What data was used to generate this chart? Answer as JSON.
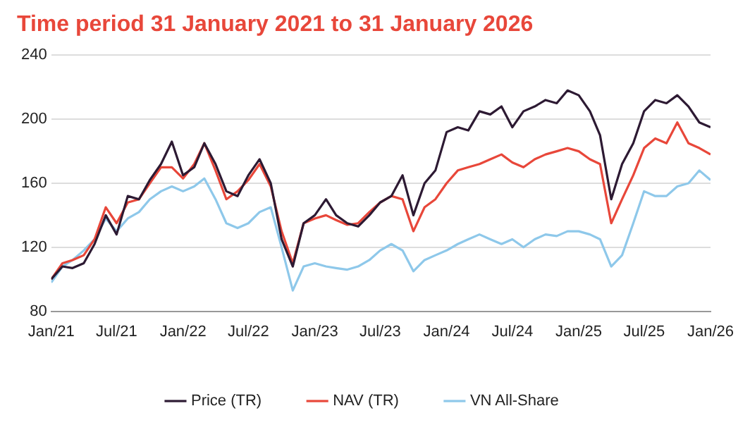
{
  "chart_data": {
    "type": "line",
    "title": "Time period 31 January 2021 to 31 January 2026",
    "x": [
      "2021-01",
      "2021-02",
      "2021-03",
      "2021-04",
      "2021-05",
      "2021-06",
      "2021-07",
      "2021-08",
      "2021-09",
      "2021-10",
      "2021-11",
      "2021-12",
      "2022-01",
      "2022-02",
      "2022-03",
      "2022-04",
      "2022-05",
      "2022-06",
      "2022-07",
      "2022-08",
      "2022-09",
      "2022-10",
      "2022-11",
      "2022-12",
      "2023-01",
      "2023-02",
      "2023-03",
      "2023-04",
      "2023-05",
      "2023-06",
      "2023-07",
      "2023-08",
      "2023-09",
      "2023-10",
      "2023-11",
      "2023-12",
      "2024-01",
      "2024-02",
      "2024-03",
      "2024-04",
      "2024-05",
      "2024-06",
      "2024-07",
      "2024-08",
      "2024-09",
      "2024-10",
      "2024-11",
      "2024-12",
      "2025-01",
      "2025-02",
      "2025-03",
      "2025-04",
      "2025-05",
      "2025-06",
      "2025-07",
      "2025-08",
      "2025-09",
      "2025-10",
      "2025-11",
      "2025-12",
      "2026-01"
    ],
    "series": [
      {
        "name": "Price (TR)",
        "color": "#2d1a33",
        "values": [
          100,
          108,
          107,
          110,
          122,
          140,
          128,
          152,
          150,
          162,
          172,
          186,
          165,
          170,
          185,
          172,
          155,
          152,
          165,
          175,
          160,
          125,
          108,
          135,
          140,
          150,
          140,
          135,
          133,
          140,
          148,
          152,
          165,
          140,
          160,
          168,
          192,
          195,
          193,
          205,
          203,
          208,
          195,
          205,
          208,
          212,
          210,
          218,
          215,
          205,
          190,
          150,
          172,
          185,
          205,
          212,
          210,
          215,
          208,
          198,
          195
        ]
      },
      {
        "name": "NAV (TR)",
        "color": "#e8473a",
        "values": [
          100,
          110,
          112,
          115,
          125,
          145,
          135,
          148,
          150,
          160,
          170,
          170,
          163,
          172,
          185,
          168,
          150,
          155,
          162,
          172,
          158,
          130,
          110,
          135,
          138,
          140,
          137,
          134,
          135,
          142,
          148,
          152,
          150,
          130,
          145,
          150,
          160,
          168,
          170,
          172,
          175,
          178,
          173,
          170,
          175,
          178,
          180,
          182,
          180,
          175,
          172,
          135,
          150,
          165,
          182,
          188,
          185,
          198,
          185,
          182,
          178
        ]
      },
      {
        "name": "VN All-Share",
        "color": "#8ec8ea",
        "values": [
          98,
          108,
          112,
          118,
          125,
          138,
          130,
          138,
          142,
          150,
          155,
          158,
          155,
          158,
          163,
          150,
          135,
          132,
          135,
          142,
          145,
          120,
          93,
          108,
          110,
          108,
          107,
          106,
          108,
          112,
          118,
          122,
          118,
          105,
          112,
          115,
          118,
          122,
          125,
          128,
          125,
          122,
          125,
          120,
          125,
          128,
          127,
          130,
          130,
          128,
          125,
          108,
          115,
          135,
          155,
          152,
          152,
          158,
          160,
          168,
          162
        ]
      }
    ],
    "xlim": [
      "2021-01",
      "2026-01"
    ],
    "xticks": [
      {
        "value": "2021-01",
        "label": "Jan/21"
      },
      {
        "value": "2021-07",
        "label": "Jul/21"
      },
      {
        "value": "2022-01",
        "label": "Jan/22"
      },
      {
        "value": "2022-07",
        "label": "Jul/22"
      },
      {
        "value": "2023-01",
        "label": "Jan/23"
      },
      {
        "value": "2023-07",
        "label": "Jul/23"
      },
      {
        "value": "2024-01",
        "label": "Jan/24"
      },
      {
        "value": "2024-07",
        "label": "Jul/24"
      },
      {
        "value": "2025-01",
        "label": "Jan/25"
      },
      {
        "value": "2025-07",
        "label": "Jul/25"
      },
      {
        "value": "2026-01",
        "label": "Jan/26"
      }
    ],
    "ylim": [
      80,
      240
    ],
    "yticks": [
      80,
      120,
      160,
      200,
      240
    ],
    "grid": "y",
    "legend": "bottom",
    "marker": "none",
    "line_style": "solid"
  }
}
